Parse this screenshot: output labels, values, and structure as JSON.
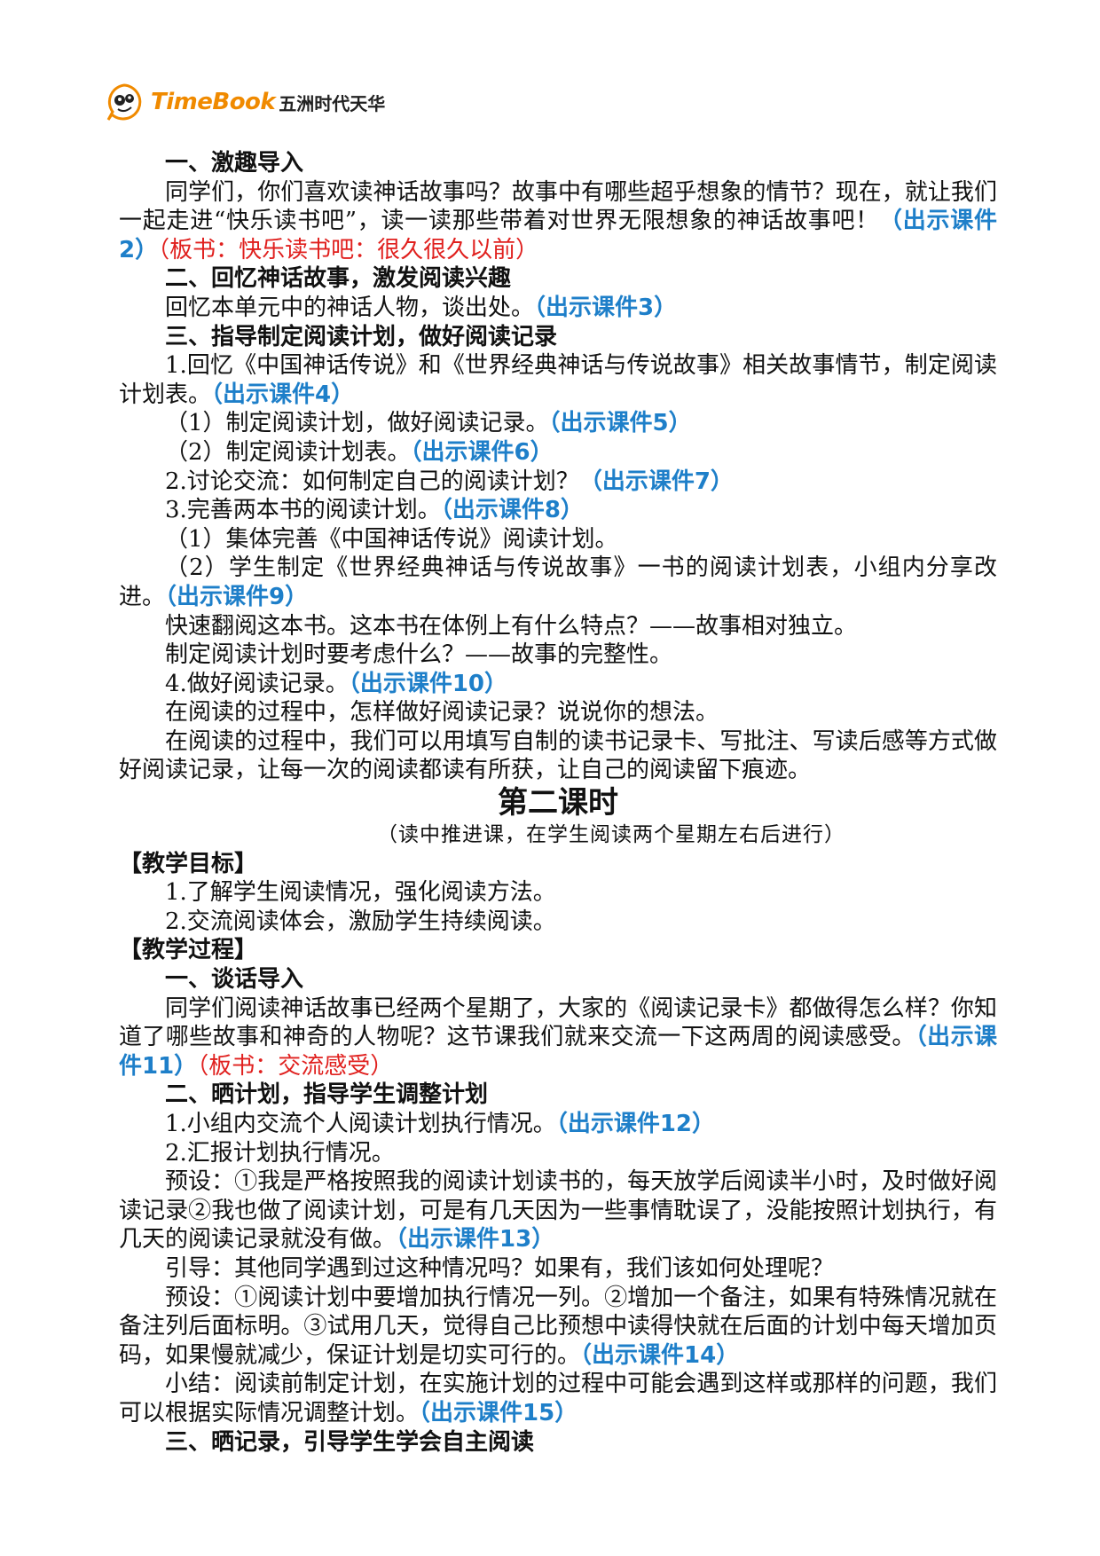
{
  "header": {
    "brand": "TimeBook",
    "company": "五洲时代天华"
  },
  "paragraphs": [
    {
      "kind": "heading",
      "runs": [
        {
          "text": "一、激趣导入"
        }
      ]
    },
    {
      "kind": "body",
      "runs": [
        {
          "text": "同学们，你们喜欢读神话故事吗？故事中有哪些超乎想象的情节？现在，就让我们一起走进“快乐读书吧”，读一读那些带着对世界无限想象的神话故事吧！"
        },
        {
          "text": "（出示课件2）",
          "color": "#1e7fc9",
          "bold": true
        },
        {
          "text": "（板书：快乐读书吧：很久很久以前）",
          "color": "#e0201e"
        }
      ]
    },
    {
      "kind": "heading",
      "runs": [
        {
          "text": "二、回忆神话故事，激发阅读兴趣"
        }
      ]
    },
    {
      "kind": "body",
      "runs": [
        {
          "text": "回忆本单元中的神话人物，谈出处。"
        },
        {
          "text": "（出示课件3）",
          "color": "#1e7fc9",
          "bold": true
        }
      ]
    },
    {
      "kind": "heading",
      "runs": [
        {
          "text": "三、指导制定阅读计划，做好阅读记录"
        }
      ]
    },
    {
      "kind": "body",
      "runs": [
        {
          "text": "1.回忆《中国神话传说》和《世界经典神话与传说故事》相关故事情节，制定阅读计划表。"
        },
        {
          "text": "（出示课件4）",
          "color": "#1e7fc9",
          "bold": true
        }
      ]
    },
    {
      "kind": "body",
      "runs": [
        {
          "text": "（1）制定阅读计划，做好阅读记录。"
        },
        {
          "text": "（出示课件5）",
          "color": "#1e7fc9",
          "bold": true
        }
      ]
    },
    {
      "kind": "body",
      "runs": [
        {
          "text": "（2）制定阅读计划表。"
        },
        {
          "text": "（出示课件6）",
          "color": "#1e7fc9",
          "bold": true
        }
      ]
    },
    {
      "kind": "body",
      "runs": [
        {
          "text": "2.讨论交流：如何制定自己的阅读计划？"
        },
        {
          "text": "（出示课件7）",
          "color": "#1e7fc9",
          "bold": true
        }
      ]
    },
    {
      "kind": "body",
      "runs": [
        {
          "text": "3.完善两本书的阅读计划。"
        },
        {
          "text": "（出示课件8）",
          "color": "#1e7fc9",
          "bold": true
        }
      ]
    },
    {
      "kind": "body",
      "runs": [
        {
          "text": "（1）集体完善《中国神话传说》阅读计划。"
        }
      ]
    },
    {
      "kind": "body",
      "runs": [
        {
          "text": "（2）学生制定《世界经典神话与传说故事》一书的阅读计划表，小组内分享改进。"
        },
        {
          "text": "（出示课件9）",
          "color": "#1e7fc9",
          "bold": true
        }
      ]
    },
    {
      "kind": "body",
      "runs": [
        {
          "text": "快速翻阅这本书。这本书在体例上有什么特点？——故事相对独立。"
        }
      ]
    },
    {
      "kind": "body",
      "runs": [
        {
          "text": "制定阅读计划时要考虑什么？——故事的完整性。"
        }
      ]
    },
    {
      "kind": "body",
      "runs": [
        {
          "text": "4.做好阅读记录。"
        },
        {
          "text": "（出示课件10）",
          "color": "#1e7fc9",
          "bold": true
        }
      ]
    },
    {
      "kind": "body",
      "runs": [
        {
          "text": "在阅读的过程中，怎样做好阅读记录？说说你的想法。"
        }
      ]
    },
    {
      "kind": "body",
      "runs": [
        {
          "text": "在阅读的过程中，我们可以用填写自制的读书记录卡、写批注、写读后感等方式做好阅读记录，让每一次的阅读都读有所获，让自己的阅读留下痕迹。"
        }
      ]
    },
    {
      "kind": "title",
      "runs": [
        {
          "text": "第二课时"
        }
      ]
    },
    {
      "kind": "subtitle",
      "runs": [
        {
          "text": "（读中推进课，在学生阅读两个星期左右后进行）"
        }
      ]
    },
    {
      "kind": "section",
      "runs": [
        {
          "text": "【教学目标】"
        }
      ]
    },
    {
      "kind": "body",
      "runs": [
        {
          "text": "1.了解学生阅读情况，强化阅读方法。"
        }
      ]
    },
    {
      "kind": "body",
      "runs": [
        {
          "text": "2.交流阅读体会，激励学生持续阅读。"
        }
      ]
    },
    {
      "kind": "section",
      "runs": [
        {
          "text": "【教学过程】"
        }
      ]
    },
    {
      "kind": "heading",
      "runs": [
        {
          "text": "一、谈话导入"
        }
      ]
    },
    {
      "kind": "body",
      "runs": [
        {
          "text": "同学们阅读神话故事已经两个星期了，大家的《阅读记录卡》都做得怎么样？你知道了哪些故事和神奇的人物呢？这节课我们就来交流一下这两周的阅读感受。"
        },
        {
          "text": "（出示课件11）",
          "color": "#1e7fc9",
          "bold": true
        },
        {
          "text": "（板书：交流感受）",
          "color": "#e0201e"
        }
      ]
    },
    {
      "kind": "heading",
      "runs": [
        {
          "text": "二、晒计划，指导学生调整计划"
        }
      ]
    },
    {
      "kind": "body",
      "runs": [
        {
          "text": "1.小组内交流个人阅读计划执行情况。"
        },
        {
          "text": "（出示课件12）",
          "color": "#1e7fc9",
          "bold": true
        }
      ]
    },
    {
      "kind": "body",
      "runs": [
        {
          "text": "2.汇报计划执行情况。"
        }
      ]
    },
    {
      "kind": "body",
      "runs": [
        {
          "text": "预设：①我是严格按照我的阅读计划读书的，每天放学后阅读半小时，及时做好阅读记录②我也做了阅读计划，可是有几天因为一些事情耽误了，没能按照计划执行，有几天的阅读记录就没有做。"
        },
        {
          "text": "（出示课件13）",
          "color": "#1e7fc9",
          "bold": true
        }
      ]
    },
    {
      "kind": "body",
      "runs": [
        {
          "text": "引导：其他同学遇到过这种情况吗？如果有，我们该如何处理呢？"
        }
      ]
    },
    {
      "kind": "body",
      "runs": [
        {
          "text": "预设：①阅读计划中要增加执行情况一列。②增加一个备注，如果有特殊情况就在备注列后面标明。③试用几天，觉得自己比预想中读得快就在后面的计划中每天增加页码，如果慢就减少，保证计划是切实可行的。"
        },
        {
          "text": "（出示课件14）",
          "color": "#1e7fc9",
          "bold": true
        }
      ]
    },
    {
      "kind": "body",
      "runs": [
        {
          "text": "小结：阅读前制定计划，在实施计划的过程中可能会遇到这样或那样的问题，我们可以根据实际情况调整计划。"
        },
        {
          "text": "（出示课件15）",
          "color": "#1e7fc9",
          "bold": true
        }
      ]
    },
    {
      "kind": "heading",
      "runs": [
        {
          "text": "三、晒记录，引导学生学会自主阅读"
        }
      ]
    }
  ]
}
